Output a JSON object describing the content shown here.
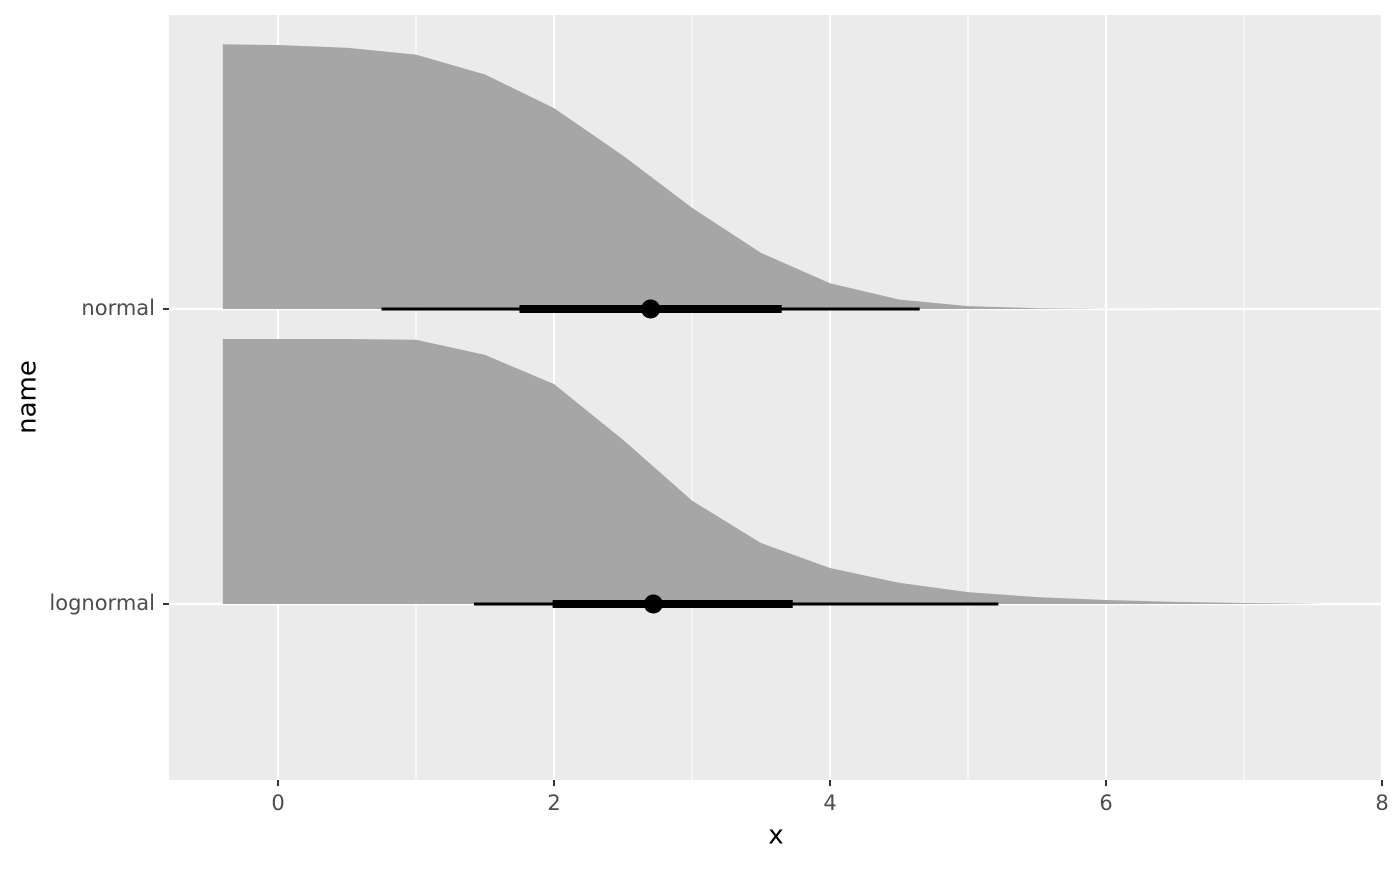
{
  "chart_data": {
    "type": "ccdf_interval",
    "xlabel": "x",
    "ylabel": "name",
    "categories": [
      "normal",
      "lognormal"
    ],
    "xlim": [
      -0.79,
      8
    ],
    "xticks": [
      0,
      2,
      4,
      6,
      8
    ],
    "x_minor_ticks": [
      1,
      3,
      5,
      7
    ],
    "grid": true,
    "slab_color": "#a6a6a6",
    "interval_color": "#000000",
    "series": [
      {
        "x": [
          -0.4,
          0,
          0.5,
          1,
          1.5,
          2,
          2.5,
          3,
          3.5,
          4,
          4.5,
          5,
          5.5,
          6,
          6.5,
          7.5
        ],
        "values": [
          0.999,
          0.996,
          0.986,
          0.96,
          0.885,
          0.758,
          0.579,
          0.382,
          0.212,
          0.097,
          0.036,
          0.011,
          0.003,
          0.0005,
          0.0001,
          0
        ],
        "point": 2.7,
        "interval_66": [
          1.75,
          3.65
        ],
        "interval_95": [
          0.75,
          4.65
        ]
      },
      {
        "x": [
          -0.4,
          0.5,
          1,
          1.5,
          2,
          2.5,
          3,
          3.5,
          4,
          4.5,
          5,
          5.5,
          6,
          6.5,
          7,
          7.6
        ],
        "values": [
          1,
          1,
          0.997,
          0.94,
          0.83,
          0.62,
          0.39,
          0.23,
          0.136,
          0.08,
          0.045,
          0.026,
          0.015,
          0.008,
          0.004,
          0
        ],
        "point": 2.72,
        "interval_66": [
          1.99,
          3.73
        ],
        "interval_95": [
          1.42,
          5.22
        ]
      }
    ]
  }
}
